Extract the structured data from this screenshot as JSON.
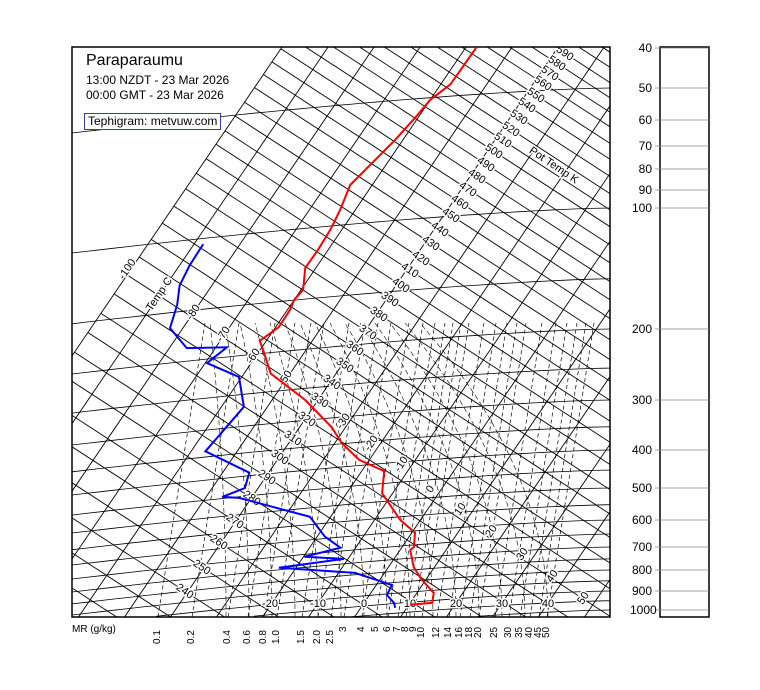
{
  "header": {
    "title": "Paraparaumu",
    "local_time": "13:00 NZDT - 23 Mar 2026",
    "gmt_time": "00:00 GMT - 23 Mar 2026",
    "credit": "Tephigram: metvuw.com"
  },
  "chart_data": {
    "type": "line",
    "diagram": "tephigram",
    "title": "Paraparaumu",
    "pressure_levels_hPa": [
      "40",
      "50",
      "60",
      "70",
      "80",
      "90",
      "100",
      "200",
      "300",
      "400",
      "500",
      "600",
      "700",
      "800",
      "900",
      "1000"
    ],
    "mixing_ratio_title": "MR (g/kg)",
    "mixing_ratio_labels": [
      "0.1",
      "0.2",
      "0.4",
      "0.6",
      "0.8",
      "1.0",
      "1.5",
      "2.0",
      "2.5",
      "3",
      "4",
      "5",
      "6",
      "7",
      "8",
      "9",
      "10",
      "12",
      "14",
      "16",
      "18",
      "20",
      "25",
      "30",
      "35",
      "40",
      "45",
      "50"
    ],
    "temperature_axis_label": "Temp C",
    "temperature_labels_bottom": [
      "-20",
      "-10",
      "0",
      "10",
      "20",
      "30",
      "40"
    ],
    "temperature_labels_diagonal": [
      "-100",
      "-80",
      "-70",
      "-60",
      "-50"
    ],
    "potential_temp_label": "Pot Temp K",
    "potential_temp_labels": [
      "240",
      "250",
      "260",
      "270",
      "280",
      "290",
      "300",
      "310",
      "320",
      "330",
      "340",
      "350",
      "360",
      "370",
      "380",
      "390",
      "400",
      "410",
      "420",
      "430",
      "440",
      "450",
      "460",
      "470",
      "480",
      "490",
      "500",
      "510",
      "520",
      "530",
      "540",
      "550",
      "560",
      "570",
      "580",
      "590"
    ],
    "wet_bulb_labels": [
      "-30",
      "-20",
      "-10",
      "0",
      "10",
      "20",
      "30",
      "40",
      "50"
    ],
    "series": [
      {
        "key": "temperature",
        "color": "#ff0000",
        "points": [
          [
            40,
            -57.7
          ],
          [
            45,
            -57.8
          ],
          [
            49,
            -57.9
          ],
          [
            53.5,
            -60
          ],
          [
            59,
            -60.6
          ],
          [
            67.5,
            -61.7
          ],
          [
            76,
            -63.1
          ],
          [
            87.5,
            -64.8
          ],
          [
            101,
            -63.3
          ],
          [
            113,
            -62.5
          ],
          [
            127,
            -62.2
          ],
          [
            141,
            -62.3
          ],
          [
            160,
            -59.5
          ],
          [
            169,
            -60
          ],
          [
            179,
            -59.4
          ],
          [
            198,
            -59.3
          ],
          [
            214,
            -61.4
          ],
          [
            224,
            -59.6
          ],
          [
            258,
            -54.2
          ],
          [
            300,
            -42.8
          ],
          [
            351,
            -33
          ],
          [
            385,
            -28.4
          ],
          [
            424,
            -22.2
          ],
          [
            453,
            -15.1
          ],
          [
            515,
            -12.3
          ],
          [
            600,
            -4.4
          ],
          [
            645,
            0.7
          ],
          [
            700,
            2.6
          ],
          [
            712,
            2.2
          ],
          [
            787,
            5.5
          ],
          [
            846,
            9.2
          ],
          [
            910,
            13.7
          ],
          [
            961,
            14.8
          ],
          [
            971,
            10.3
          ]
        ]
      },
      {
        "key": "dewpoint",
        "color": "#0000ff",
        "points": [
          [
            123,
            -88
          ],
          [
            139,
            -87.8
          ],
          [
            156,
            -87
          ],
          [
            174,
            -84.7
          ],
          [
            199,
            -82.8
          ],
          [
            223,
            -76.2
          ],
          [
            222,
            -67.6
          ],
          [
            243,
            -69.6
          ],
          [
            263,
            -60.6
          ],
          [
            312,
            -55.1
          ],
          [
            403,
            -56.9
          ],
          [
            457,
            -44.2
          ],
          [
            500,
            -42.9
          ],
          [
            526,
            -46.5
          ],
          [
            529,
            -42.7
          ],
          [
            589,
            -24.5
          ],
          [
            660,
            -18.3
          ],
          [
            703,
            -13.3
          ],
          [
            741,
            -19.8
          ],
          [
            750,
            -10.9
          ],
          [
            790,
            -23.7
          ],
          [
            813,
            -6.4
          ],
          [
            870,
            3.4
          ],
          [
            920,
            3.8
          ],
          [
            961,
            6.5
          ],
          [
            988,
            7.5
          ]
        ]
      }
    ]
  }
}
